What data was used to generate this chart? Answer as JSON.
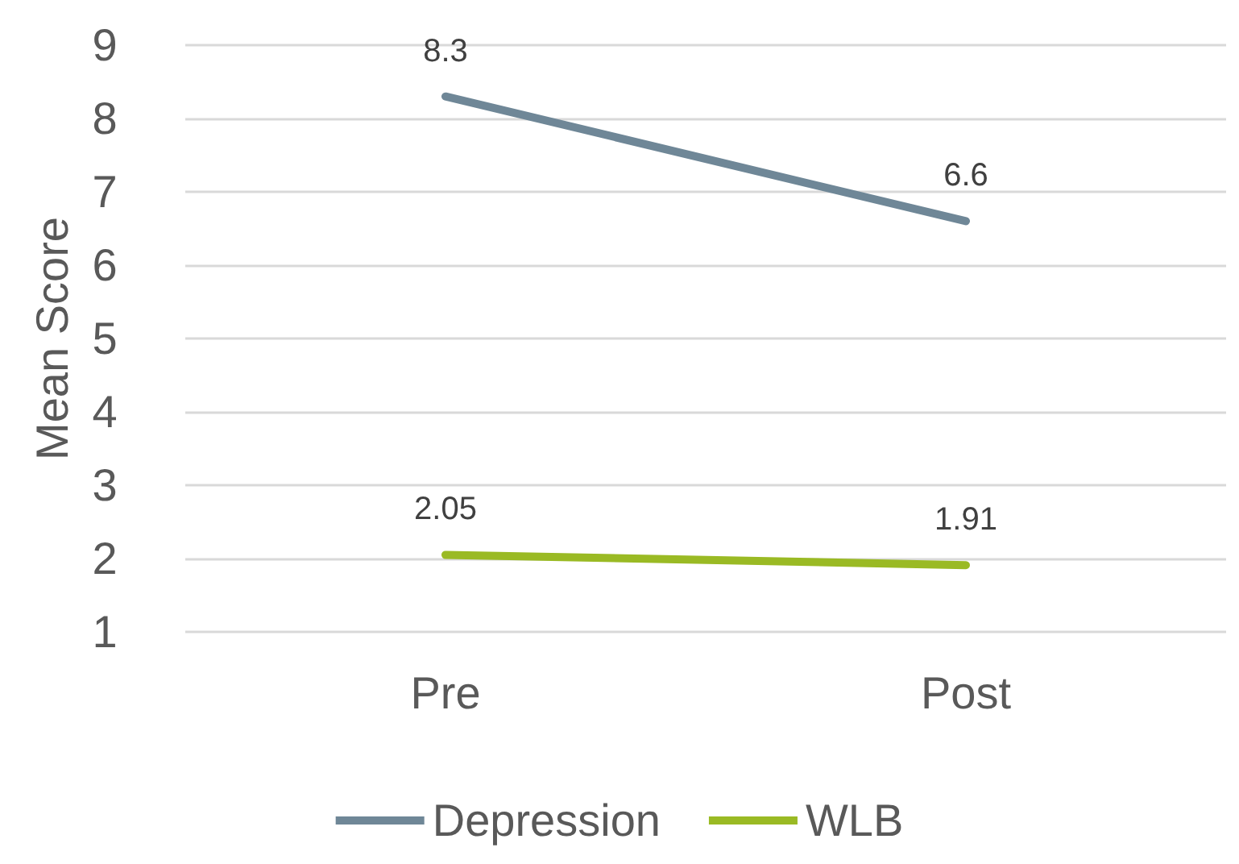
{
  "chart_data": {
    "type": "line",
    "ylabel": "Mean Score",
    "categories": [
      "Pre",
      "Post"
    ],
    "series": [
      {
        "name": "Depression",
        "color": "#6f8797",
        "values": [
          8.3,
          6.6
        ]
      },
      {
        "name": "WLB",
        "color": "#9aba24",
        "values": [
          2.05,
          1.91
        ]
      }
    ],
    "ylim": [
      1,
      9
    ],
    "yticks": [
      1,
      2,
      3,
      4,
      5,
      6,
      7,
      8,
      9
    ],
    "grid": "y",
    "legend": "bottom",
    "data_labels": true,
    "marker": "none"
  }
}
